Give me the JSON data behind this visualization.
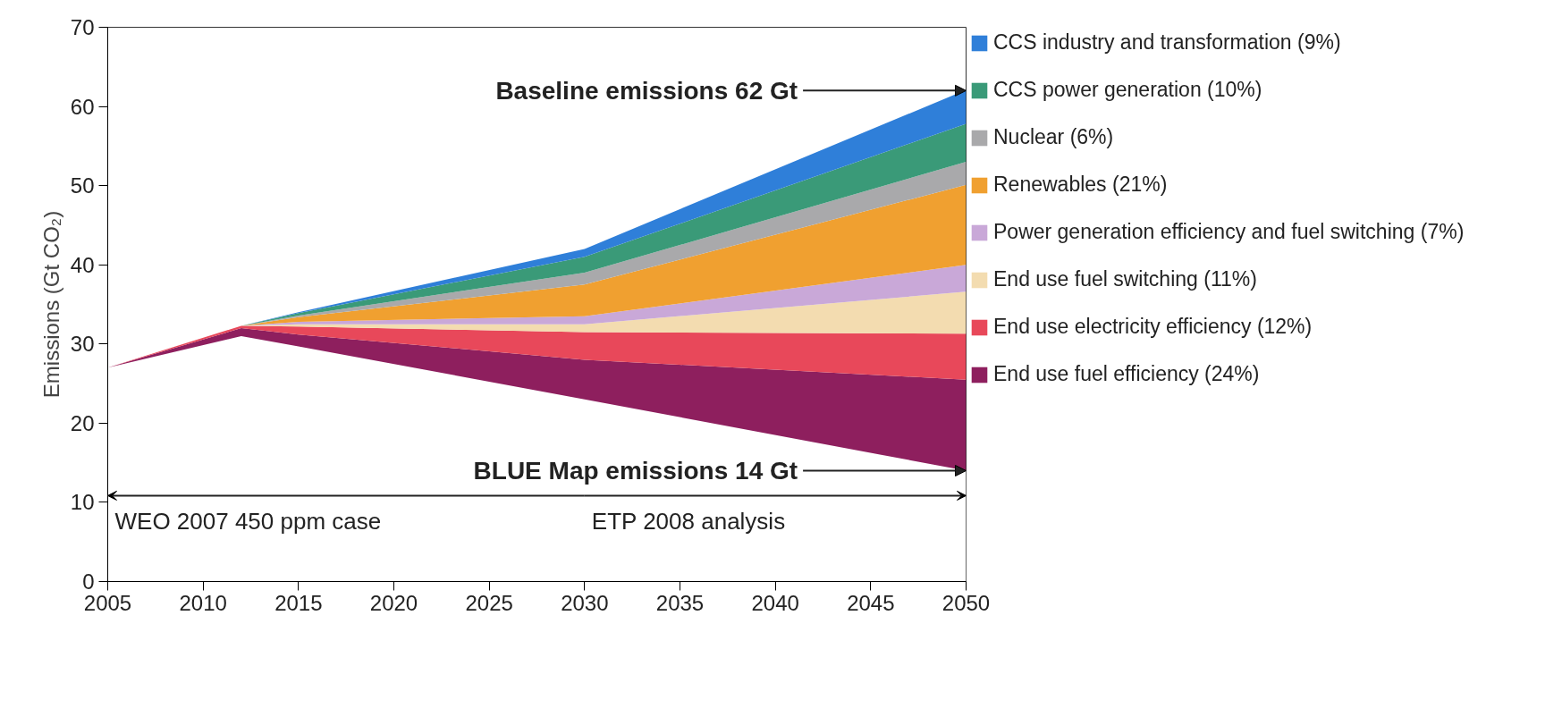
{
  "chart_data": {
    "type": "area",
    "stacked": true,
    "ylabel": "Emissions (Gt CO₂)",
    "x": [
      2005,
      2012,
      2015,
      2030,
      2050
    ],
    "xlim": [
      2005,
      2050
    ],
    "xticks": [
      2005,
      2010,
      2015,
      2020,
      2025,
      2030,
      2035,
      2040,
      2045,
      2050
    ],
    "ylim": [
      0,
      70
    ],
    "yticks": [
      0,
      10,
      20,
      30,
      40,
      50,
      60,
      70
    ],
    "grid": false,
    "legend": "right",
    "series": [
      {
        "color": "#ffffff",
        "values": [
          27,
          31,
          29.7,
          23,
          14
        ]
      },
      {
        "name": "End use fuel efficiency (24%)",
        "color": "#8e1f5e",
        "values": [
          0,
          1,
          1.5,
          5,
          11.5
        ]
      },
      {
        "name": "End use electricity efficiency (12%)",
        "color": "#e8485a",
        "values": [
          0,
          0.3,
          1,
          3.5,
          5.8
        ]
      },
      {
        "name": "End use fuel switching (11%)",
        "color": "#f3dcb0",
        "values": [
          0,
          0,
          0.3,
          1,
          5.3
        ]
      },
      {
        "name": "Power generation efficiency and fuel switching (7%)",
        "color": "#c9a8d8",
        "values": [
          0,
          0,
          0.3,
          1,
          3.4
        ]
      },
      {
        "name": "Renewables (21%)",
        "color": "#f0a030",
        "values": [
          0,
          0,
          0.6,
          4,
          10.1
        ]
      },
      {
        "name": "Nuclear (6%)",
        "color": "#a9a9ab",
        "values": [
          0,
          0,
          0.2,
          1.5,
          2.9
        ]
      },
      {
        "name": "CCS power generation (10%)",
        "color": "#3a9a78",
        "values": [
          0,
          0,
          0.3,
          2,
          4.8
        ]
      },
      {
        "name": "CCS industry and transformation (9%)",
        "color": "#2f7fd9",
        "values": [
          0,
          0,
          0.1,
          1,
          4.3
        ]
      }
    ],
    "annotations": [
      {
        "text": "Baseline emissions 62 Gt",
        "x": 2050,
        "y": 62
      },
      {
        "text": "BLUE Map emissions 14 Gt",
        "x": 2050,
        "y": 14
      },
      "WEO 2007 450 ppm case",
      "ETP 2008 analysis"
    ]
  }
}
